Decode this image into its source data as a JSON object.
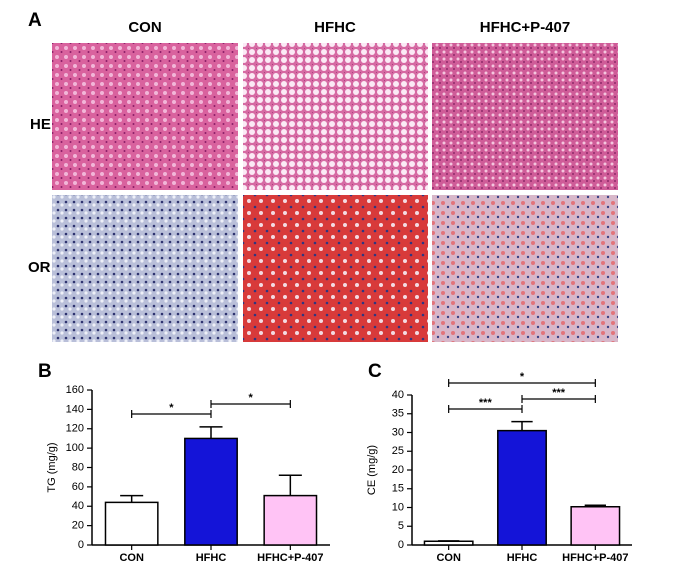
{
  "panel_a": {
    "label": "A",
    "columns": [
      "CON",
      "HFHC",
      "HFHC+P-407"
    ],
    "rows": [
      "HE",
      "OR"
    ]
  },
  "chart_data": [
    {
      "type": "bar",
      "label": "B",
      "ylabel": "TG (mg/g)",
      "categories": [
        "CON",
        "HFHC",
        "HFHC+P-407"
      ],
      "values": [
        44,
        110,
        51
      ],
      "errors": [
        7,
        12,
        21
      ],
      "colors": [
        "#ffffff",
        "#1414d8",
        "#ffc3f5"
      ],
      "ylim": [
        0,
        160
      ],
      "yticks": [
        0,
        20,
        40,
        60,
        80,
        100,
        120,
        140,
        160
      ],
      "comparisons": [
        {
          "label": "*",
          "between": [
            0,
            1
          ]
        },
        {
          "label": "*",
          "between": [
            1,
            2
          ]
        }
      ]
    },
    {
      "type": "bar",
      "label": "C",
      "ylabel": "CE (mg/g)",
      "categories": [
        "CON",
        "HFHC",
        "HFHC+P-407"
      ],
      "values": [
        1.0,
        30.5,
        10.2
      ],
      "errors": [
        0.1,
        2.4,
        0.4
      ],
      "colors": [
        "#ffffff",
        "#1414d8",
        "#ffc3f5"
      ],
      "ylim": [
        0,
        40
      ],
      "yticks": [
        0,
        5,
        10,
        15,
        20,
        25,
        30,
        35,
        40
      ],
      "comparisons": [
        {
          "label": "***",
          "between": [
            0,
            1
          ]
        },
        {
          "label": "***",
          "between": [
            1,
            2
          ]
        },
        {
          "label": "*",
          "between": [
            0,
            2
          ]
        }
      ]
    }
  ]
}
